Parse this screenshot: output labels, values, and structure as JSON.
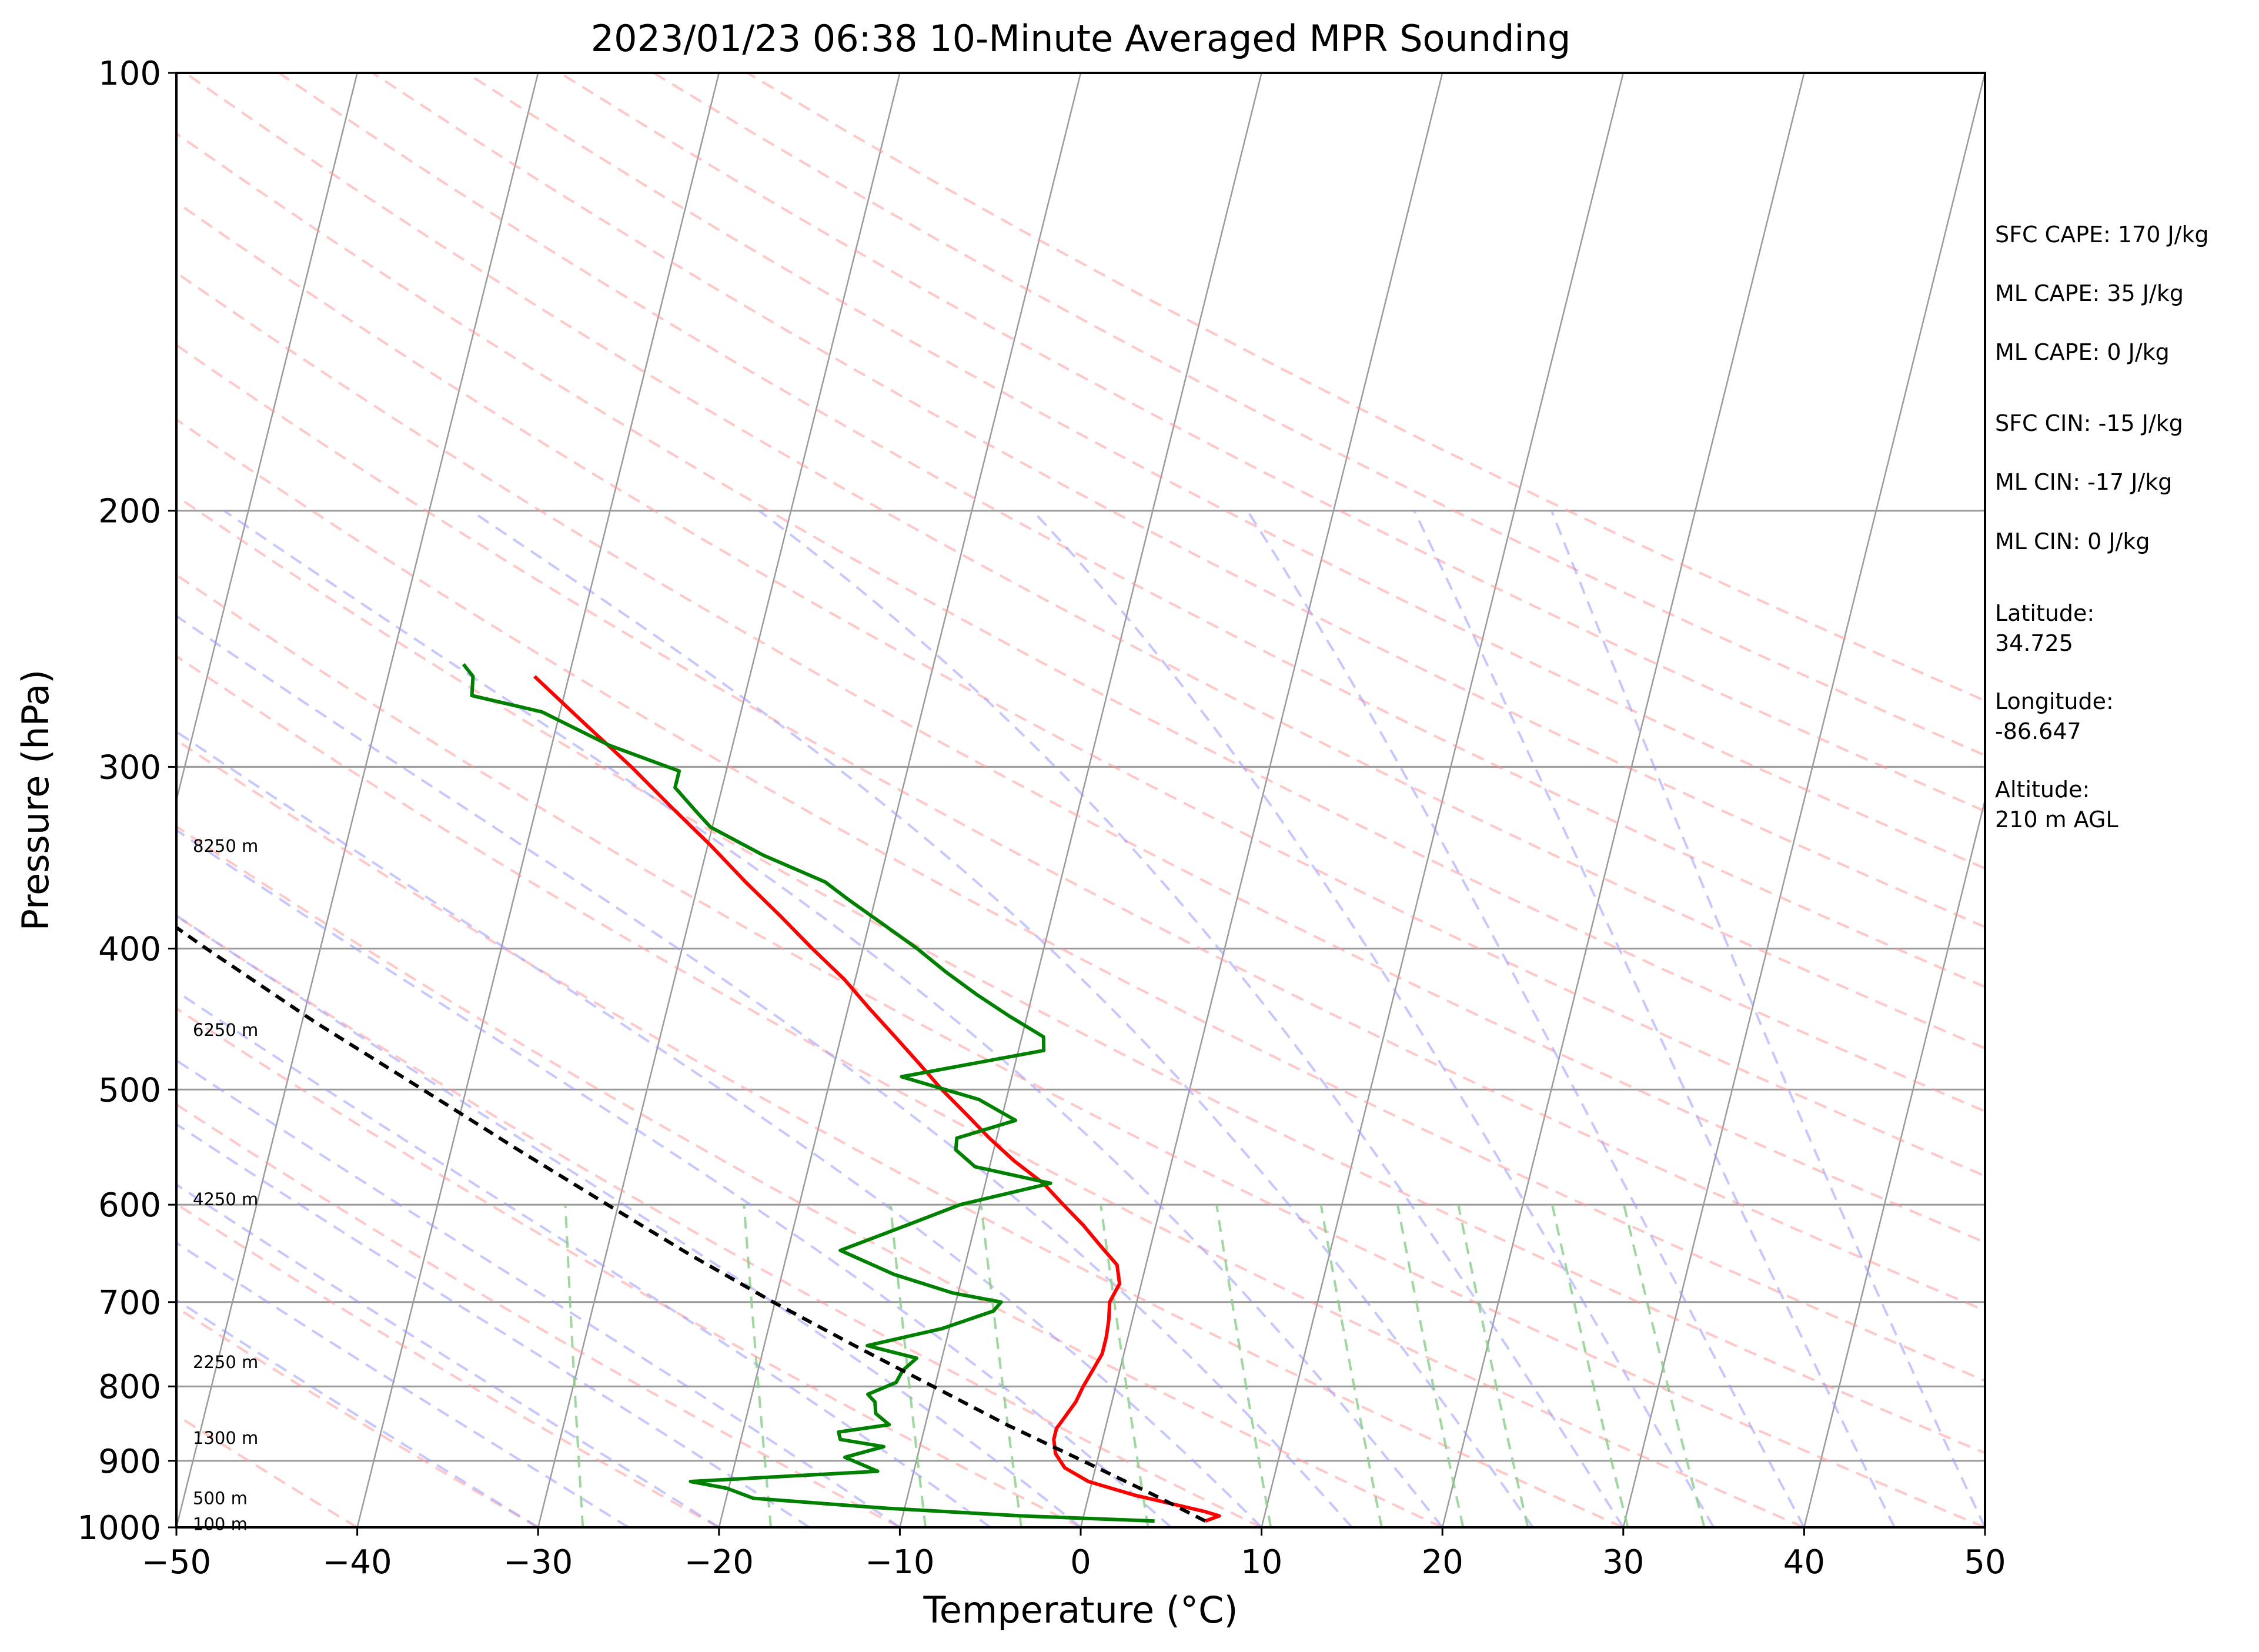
{
  "chart_data": {
    "type": "skew-t",
    "title": "2023/01/23 06:38 10-Minute Averaged MPR Sounding",
    "xlabel": "Temperature (°C)",
    "ylabel": "Pressure (hPa)",
    "xlim": [
      -50,
      50
    ],
    "ylim": [
      1000,
      100
    ],
    "y_scale": "log",
    "grid": true,
    "x_ticks": [
      "−50",
      "−40",
      "−30",
      "−20",
      "−10",
      "0",
      "10",
      "20",
      "30",
      "40",
      "50"
    ],
    "y_ticks": [
      "1000",
      "900",
      "800",
      "700",
      "600",
      "500",
      "400",
      "300",
      "200",
      "100"
    ],
    "colors": {
      "temperature": "#ff0000",
      "dewpoint": "#008000",
      "parcel": "#000000",
      "dry_adiabats": "#ff9999",
      "moist_adiabats": "#9999ff",
      "mixing_ratio": "#88cc88",
      "isotherms": "#9a9a9a"
    },
    "series": [
      {
        "role": "temperature",
        "points": [
          [
            990,
            6.8
          ],
          [
            982,
            7.5
          ],
          [
            975,
            6.6
          ],
          [
            950,
            2.5
          ],
          [
            930,
            -0.2
          ],
          [
            910,
            -1.7
          ],
          [
            890,
            -2.4
          ],
          [
            870,
            -2.7
          ],
          [
            855,
            -2.7
          ],
          [
            840,
            -2.4
          ],
          [
            820,
            -2.0
          ],
          [
            800,
            -1.8
          ],
          [
            780,
            -1.5
          ],
          [
            760,
            -1.2
          ],
          [
            740,
            -1.2
          ],
          [
            720,
            -1.3
          ],
          [
            700,
            -1.5
          ],
          [
            680,
            -1.2
          ],
          [
            660,
            -1.6
          ],
          [
            640,
            -2.8
          ],
          [
            620,
            -4.0
          ],
          [
            600,
            -5.4
          ],
          [
            580,
            -6.8
          ],
          [
            560,
            -8.7
          ],
          [
            540,
            -10.4
          ],
          [
            520,
            -12.0
          ],
          [
            500,
            -13.7
          ],
          [
            480,
            -15.3
          ],
          [
            460,
            -17.0
          ],
          [
            440,
            -18.8
          ],
          [
            420,
            -20.6
          ],
          [
            400,
            -22.8
          ],
          [
            380,
            -25.0
          ],
          [
            360,
            -27.4
          ],
          [
            340,
            -29.8
          ],
          [
            320,
            -32.5
          ],
          [
            300,
            -35.3
          ],
          [
            280,
            -38.5
          ],
          [
            260,
            -41.9
          ]
        ]
      },
      {
        "role": "dewpoint",
        "points": [
          [
            990,
            4.0
          ],
          [
            982,
            -3.4
          ],
          [
            970,
            -11.1
          ],
          [
            955,
            -18.5
          ],
          [
            940,
            -20.1
          ],
          [
            930,
            -22.2
          ],
          [
            915,
            -12.0
          ],
          [
            895,
            -14.0
          ],
          [
            880,
            -12.0
          ],
          [
            870,
            -14.5
          ],
          [
            860,
            -14.7
          ],
          [
            850,
            -12.0
          ],
          [
            835,
            -12.9
          ],
          [
            820,
            -13.1
          ],
          [
            810,
            -13.6
          ],
          [
            795,
            -12.2
          ],
          [
            780,
            -12.0
          ],
          [
            765,
            -11.4
          ],
          [
            750,
            -14.3
          ],
          [
            730,
            -10.4
          ],
          [
            710,
            -7.8
          ],
          [
            700,
            -7.5
          ],
          [
            690,
            -10.3
          ],
          [
            670,
            -13.8
          ],
          [
            645,
            -17.1
          ],
          [
            620,
            -13.8
          ],
          [
            600,
            -11.1
          ],
          [
            580,
            -6.4
          ],
          [
            565,
            -10.8
          ],
          [
            550,
            -12.1
          ],
          [
            540,
            -12.2
          ],
          [
            525,
            -9.2
          ],
          [
            508,
            -11.5
          ],
          [
            490,
            -16.1
          ],
          [
            470,
            -8.6
          ],
          [
            460,
            -8.8
          ],
          [
            445,
            -11.0
          ],
          [
            430,
            -13.1
          ],
          [
            415,
            -15.1
          ],
          [
            400,
            -17.0
          ],
          [
            385,
            -19.2
          ],
          [
            370,
            -21.5
          ],
          [
            360,
            -23.0
          ],
          [
            345,
            -26.8
          ],
          [
            330,
            -30.1
          ],
          [
            322,
            -31.1
          ],
          [
            310,
            -32.6
          ],
          [
            302,
            -32.6
          ],
          [
            290,
            -36.8
          ],
          [
            275,
            -41.0
          ],
          [
            268,
            -45.1
          ],
          [
            260,
            -45.3
          ],
          [
            255,
            -46.0
          ]
        ]
      },
      {
        "role": "parcel",
        "points": [
          [
            990,
            6.8
          ],
          [
            950,
            3.6
          ],
          [
            900,
            -0.8
          ],
          [
            850,
            -5.5
          ],
          [
            800,
            -10.1
          ],
          [
            750,
            -15.0
          ],
          [
            700,
            -20.1
          ],
          [
            650,
            -25.3
          ],
          [
            600,
            -30.6
          ],
          [
            550,
            -36.3
          ],
          [
            500,
            -42.4
          ],
          [
            450,
            -49.2
          ],
          [
            400,
            -56.3
          ],
          [
            350,
            -64.1
          ],
          [
            300,
            -72.7
          ],
          [
            255,
            -81.8
          ]
        ]
      }
    ],
    "height_labels": [
      {
        "label": "8250 m",
        "p": 340
      },
      {
        "label": "6250 m",
        "p": 455
      },
      {
        "label": "4250 m",
        "p": 595
      },
      {
        "label": "2250 m",
        "p": 770
      },
      {
        "label": "1300 m",
        "p": 868
      },
      {
        "label": "500 m",
        "p": 955
      },
      {
        "label": "100 m",
        "p": 995
      }
    ],
    "annotations": [
      "SFC CAPE: 170 J/kg",
      "ML CAPE: 35 J/kg",
      "ML CAPE: 0 J/kg",
      "SFC CIN: -15 J/kg",
      "ML CIN: -17 J/kg",
      "ML CIN: 0 J/kg",
      "Latitude:",
      "34.725",
      "Longitude:",
      "-86.647",
      "Altitude:",
      "210 m AGL"
    ]
  }
}
